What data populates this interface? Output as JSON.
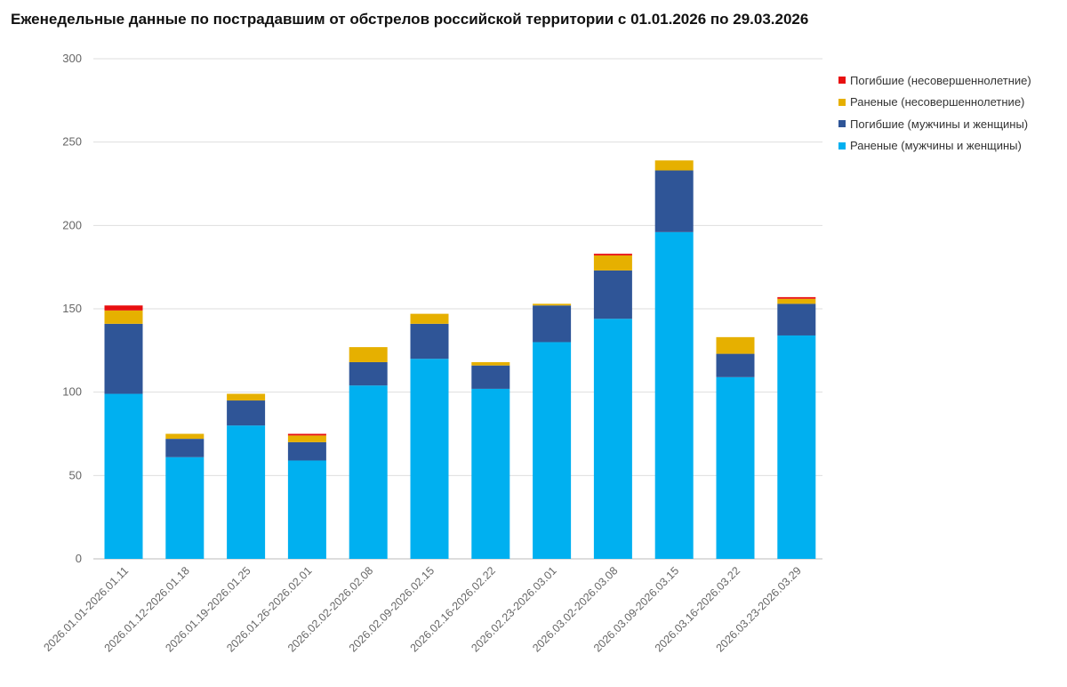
{
  "chart_data": {
    "type": "bar",
    "stacked": true,
    "title": "Еженедельные данные по пострадавшим от обстрелов российской территории с 01.01.2026 по 29.03.2026",
    "xlabel": "",
    "ylabel": "",
    "ylim": [
      0,
      300
    ],
    "yticks": [
      0,
      50,
      100,
      150,
      200,
      250,
      300
    ],
    "grid": true,
    "legend_position": "right",
    "categories": [
      "2026.01.01-2026.01.11",
      "2026.01.12-2026.01.18",
      "2026.01.19-2026.01.25",
      "2026.01.26-2026.02.01",
      "2026.02.02-2026.02.08",
      "2026.02.09-2026.02.15",
      "2026.02.16-2026.02.22",
      "2026.02.23-2026.03.01",
      "2026.03.02-2026.03.08",
      "2026.03.09-2026.03.15",
      "2026.03.16-2026.03.22",
      "2026.03.23-2026.03.29"
    ],
    "series": [
      {
        "name": "Раненые (мужчины и женщины)",
        "color": "#00b0f0",
        "values": [
          99,
          61,
          80,
          59,
          104,
          120,
          102,
          130,
          144,
          196,
          109,
          134
        ]
      },
      {
        "name": "Погибшие (мужчины и женщины)",
        "color": "#2f5597",
        "values": [
          42,
          11,
          15,
          11,
          14,
          21,
          14,
          22,
          29,
          37,
          14,
          19
        ]
      },
      {
        "name": "Раненые (несовершеннолетние)",
        "color": "#e6b000",
        "values": [
          8,
          3,
          4,
          4,
          9,
          6,
          2,
          1,
          9,
          6,
          10,
          3
        ]
      },
      {
        "name": "Погибшие (несовершеннолетние)",
        "color": "#e81010",
        "values": [
          3,
          0,
          0,
          1,
          0,
          0,
          0,
          0,
          1,
          0,
          0,
          1
        ]
      }
    ]
  }
}
